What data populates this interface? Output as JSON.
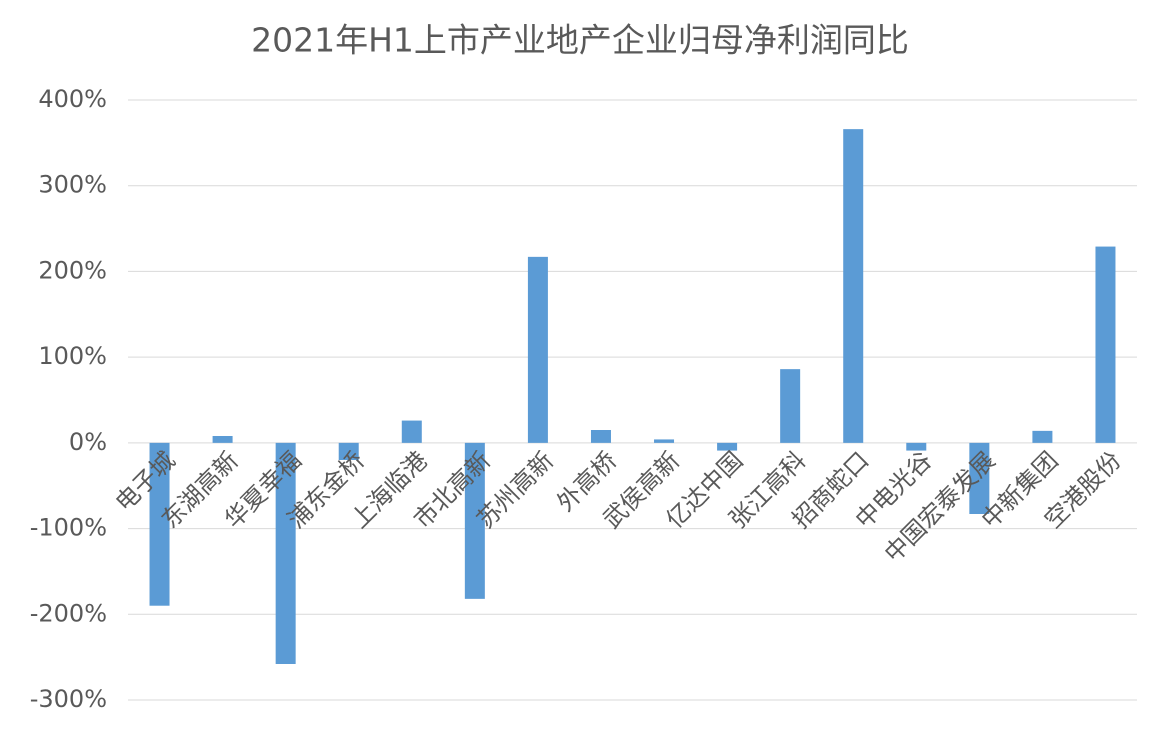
{
  "chart_data": {
    "type": "bar",
    "title": "2021年H1上市产业地产企业归母净利润同比",
    "categories": [
      "电子城",
      "东湖高新",
      "华夏幸福",
      "浦东金桥",
      "上海临港",
      "市北高新",
      "苏州高新",
      "外高桥",
      "武侯高新",
      "亿达中国",
      "张江高科",
      "招商蛇口",
      "中电光谷",
      "中国宏泰发展",
      "中新集团",
      "空港股份"
    ],
    "values": [
      -190,
      8,
      -258,
      -20,
      26,
      -182,
      217,
      15,
      4,
      -9,
      86,
      366,
      -9,
      -83,
      14,
      229
    ],
    "color": "#5b9bd5",
    "ylim": [
      -300,
      400
    ],
    "yticks": [
      {
        "value": -300,
        "label": "-300%"
      },
      {
        "value": -200,
        "label": "-200%"
      },
      {
        "value": -100,
        "label": "-100%"
      },
      {
        "value": 0,
        "label": "0%"
      },
      {
        "value": 100,
        "label": "100%"
      },
      {
        "value": 200,
        "label": "200%"
      },
      {
        "value": 300,
        "label": "300%"
      },
      {
        "value": 400,
        "label": "400%"
      }
    ],
    "grid": true
  }
}
